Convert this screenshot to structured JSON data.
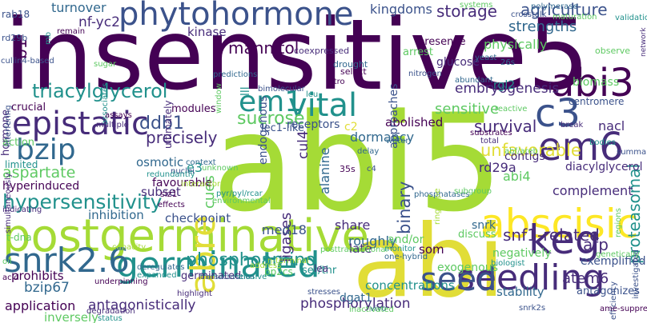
{
  "palette": {
    "dark_purple": "#440154",
    "purple": "#472c7a",
    "indigo": "#3b528b",
    "blue": "#31688e",
    "teal": "#21918c",
    "green_teal": "#35b779",
    "green": "#5ec962",
    "lime": "#a5db36",
    "yellow": "#e1dd37",
    "light_yellow": "#fde725"
  },
  "words": [
    "insensitive5",
    "abi5",
    "abi",
    "postgerminative",
    "phytohormone",
    "abscisic",
    "epistatic",
    "germinated",
    "snrk2.6",
    "keg",
    "seedling",
    "em6",
    "c3",
    "abi3",
    "vital",
    "abre",
    "em1",
    "bzip",
    "seed",
    "triacylglycerol",
    "storage",
    "agriculture",
    "kingdoms",
    "unfavorable",
    "phosphoamino",
    "hypersensitivity",
    "snf1-related",
    "sucrose",
    "ddb1",
    "embryogenesis",
    "sensitive",
    "abolished",
    "precisely",
    "cul4",
    "binary",
    "ligases",
    "survival",
    "afp",
    "aspartate",
    "hyperinduced",
    "osmotic",
    "cues",
    "subset",
    "inhibition",
    "checkpoint",
    "mannitol",
    "kinase",
    "strengths",
    "physically",
    "turnover",
    "nf-yc2",
    "b1",
    "rab18",
    "lll",
    "dormancy",
    "proteasomal",
    "abi4",
    "complement",
    "diacylglycerol",
    "contigs",
    "nacl",
    "centromere",
    "e3",
    "med18",
    "share",
    "roughly",
    "rd29a",
    "alanine",
    "bzip67",
    "prohibits",
    "application",
    "inversely",
    "antagonistically",
    "phosphorylation",
    "germinated",
    "transactivation",
    "concentrations",
    "dgat1",
    "antagonizes",
    "stability",
    "exemplified",
    "atem6",
    "exogenous",
    "snrk",
    "and/or",
    "som",
    "ser/thr",
    "pp2cs",
    "lea",
    "late",
    "discuss",
    "negatively",
    "glucose",
    "rgl2",
    "biomass",
    "arrest",
    "presence",
    "approaches",
    "endogenous",
    "ultimately",
    "favourable",
    "siz1",
    "c2",
    "receptors",
    "lec1-like",
    "modules",
    "crucial",
    "hormone",
    "action",
    "limited",
    "simultaneously",
    "indicating",
    "interfering",
    "rd29b",
    "mb",
    "remain",
    "sugar",
    "associates",
    "predictions",
    "window",
    "coexpressed",
    "drought",
    "select",
    "nitrogen",
    "abundant",
    "yeast",
    "26s",
    "observe",
    "validation",
    "network",
    "maturation",
    "polymerase",
    "systems",
    "crosstalk",
    "break",
    "reactive",
    "bodies",
    "summary",
    "substrates",
    "total",
    "abf/areb",
    "delay",
    "water",
    "nuclei",
    "context",
    "unknown",
    "interactors",
    "redundantly",
    "assays",
    "multiple",
    "cullin4-based",
    "bimolecular",
    "leu",
    "vitro",
    "c4",
    "phosphatases",
    "ring-type",
    "subgroup",
    "biologist",
    "genetically",
    "efficiency",
    "ame-suppressor1",
    "snrk2s",
    "vivo",
    "inactivated",
    "stresses",
    "n-terminal",
    "address",
    "elusive",
    "monitor",
    "one-hybrid",
    "posttranslational",
    "investigated",
    "regions",
    "oil",
    "acid",
    "underpinning",
    "deregulates",
    "expanded",
    "degradation",
    "status",
    "highlight",
    "capacity",
    "environmental",
    "pyr/pyl/rcar",
    "effects",
    "t-dna",
    "35s",
    "insertions",
    "consistently",
    "additionally",
    "plays",
    "transient",
    "inhibitory",
    "establishment",
    "maintain",
    "rav"
  ]
}
